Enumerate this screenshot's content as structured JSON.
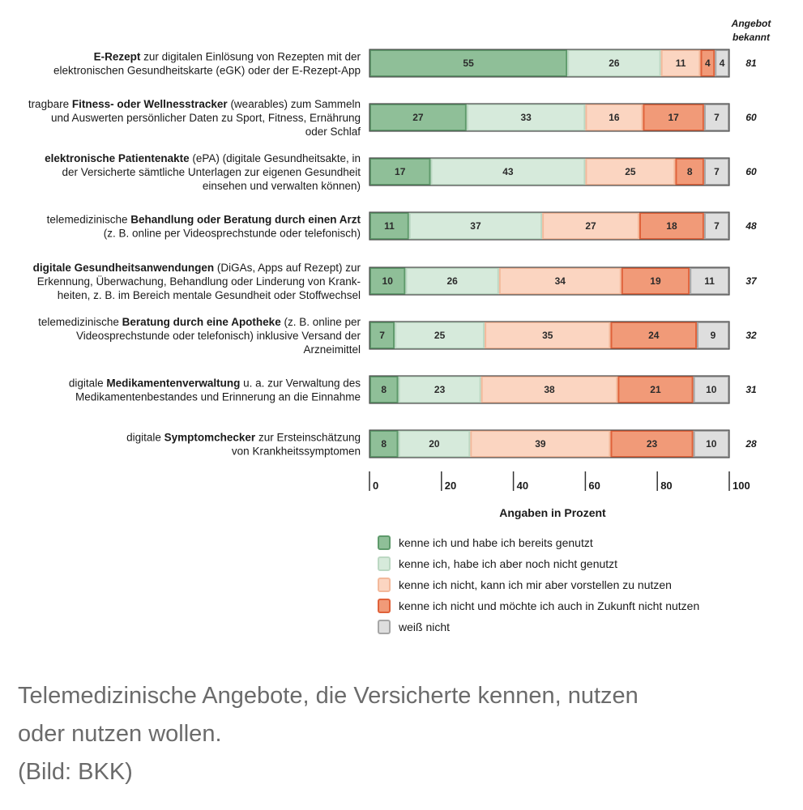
{
  "chart_data": {
    "type": "bar",
    "stacked": true,
    "orientation": "horizontal",
    "xlabel": "Angaben in Prozent",
    "xlim": [
      0,
      100
    ],
    "xticks": [
      "0",
      "20",
      "40",
      "60",
      "80",
      "100"
    ],
    "extra_column_header": [
      "Angebot",
      "bekannt"
    ],
    "categories": [
      [
        [
          "E-Rezept",
          true
        ],
        [
          " zur digitalen Einlösung von Rezepten mit der",
          false
        ],
        [
          "|",
          false
        ],
        [
          "elektronischen Gesundheitskarte (eGK) oder der E-Rezept-App",
          false
        ]
      ],
      [
        [
          "tragbare ",
          false
        ],
        [
          "Fitness- oder Wellnesstracker",
          true
        ],
        [
          " (wearables) zum Sammeln",
          false
        ],
        [
          "|",
          false
        ],
        [
          "und Auswerten persönlicher Daten zu Sport, Fitness, Ernährung",
          false
        ],
        [
          "|",
          false
        ],
        [
          "oder Schlaf",
          false
        ]
      ],
      [
        [
          "elektronische Patientenakte",
          true
        ],
        [
          " (ePA) (digitale Gesundheitsakte, in",
          false
        ],
        [
          "|",
          false
        ],
        [
          "der Versicherte sämtliche Unterlagen zur eigenen Gesundheit",
          false
        ],
        [
          "|",
          false
        ],
        [
          "einsehen und verwalten können)",
          false
        ]
      ],
      [
        [
          "telemedizinische ",
          false
        ],
        [
          "Behandlung oder Beratung durch einen Arzt",
          true
        ],
        [
          "|",
          false
        ],
        [
          "(z. B. online per Videosprechstunde oder telefonisch)",
          false
        ]
      ],
      [
        [
          "digitale Gesundheitsanwendungen",
          true
        ],
        [
          " (DiGAs, Apps auf Rezept) zur",
          false
        ],
        [
          "|",
          false
        ],
        [
          "Erkennung, Überwachung, Behandlung oder Linderung von Krank-",
          false
        ],
        [
          "|",
          false
        ],
        [
          "heiten, z. B. im Bereich mentale Gesundheit oder Stoffwechsel",
          false
        ]
      ],
      [
        [
          "telemedizinische ",
          false
        ],
        [
          "Beratung durch eine Apotheke",
          true
        ],
        [
          " (z. B. online per",
          false
        ],
        [
          "|",
          false
        ],
        [
          "Videosprechstunde oder telefonisch) inklusive Versand der",
          false
        ],
        [
          "|",
          false
        ],
        [
          "Arzneimittel",
          false
        ]
      ],
      [
        [
          "digitale ",
          false
        ],
        [
          "Medikamentenverwaltung",
          true
        ],
        [
          " u. a. zur Verwaltung des",
          false
        ],
        [
          "|",
          false
        ],
        [
          "Medikamentenbestandes und Erinnerung an die Einnahme",
          false
        ]
      ],
      [
        [
          "digitale ",
          false
        ],
        [
          "Symptomchecker",
          true
        ],
        [
          " zur Ersteinschätzung",
          false
        ],
        [
          "|",
          false
        ],
        [
          "von Krankheitssymptomen",
          false
        ]
      ]
    ],
    "series": [
      {
        "name": "kenne ich und habe ich bereits genutzt",
        "color": "#8fbf98",
        "edge": "#5e9a6b",
        "values": [
          55,
          27,
          17,
          11,
          10,
          7,
          8,
          8
        ]
      },
      {
        "name": "kenne ich, habe ich aber noch nicht genutzt",
        "color": "#d6eadb",
        "edge": "#bcd8c3",
        "values": [
          26,
          33,
          43,
          37,
          26,
          25,
          23,
          20
        ]
      },
      {
        "name": "kenne ich nicht, kann ich mir aber vorstellen zu nutzen",
        "color": "#fbd5c1",
        "edge": "#f3b99b",
        "values": [
          11,
          16,
          25,
          27,
          34,
          35,
          38,
          39
        ]
      },
      {
        "name": "kenne ich nicht und möchte ich auch in Zukunft nicht nutzen",
        "color": "#f19a78",
        "edge": "#e0623a",
        "values": [
          4,
          17,
          8,
          18,
          19,
          24,
          21,
          23
        ]
      },
      {
        "name": "weiß nicht",
        "color": "#dedede",
        "edge": "#a6a6a6",
        "values": [
          4,
          7,
          7,
          7,
          11,
          9,
          10,
          10
        ]
      }
    ],
    "known": [
      81,
      60,
      60,
      48,
      37,
      32,
      31,
      28
    ]
  },
  "caption": {
    "line1": "Telemedizinische Angebote, die Versicherte kennen, nutzen",
    "line2": "oder nutzen wollen.",
    "credit": "(Bild: BKK)"
  }
}
